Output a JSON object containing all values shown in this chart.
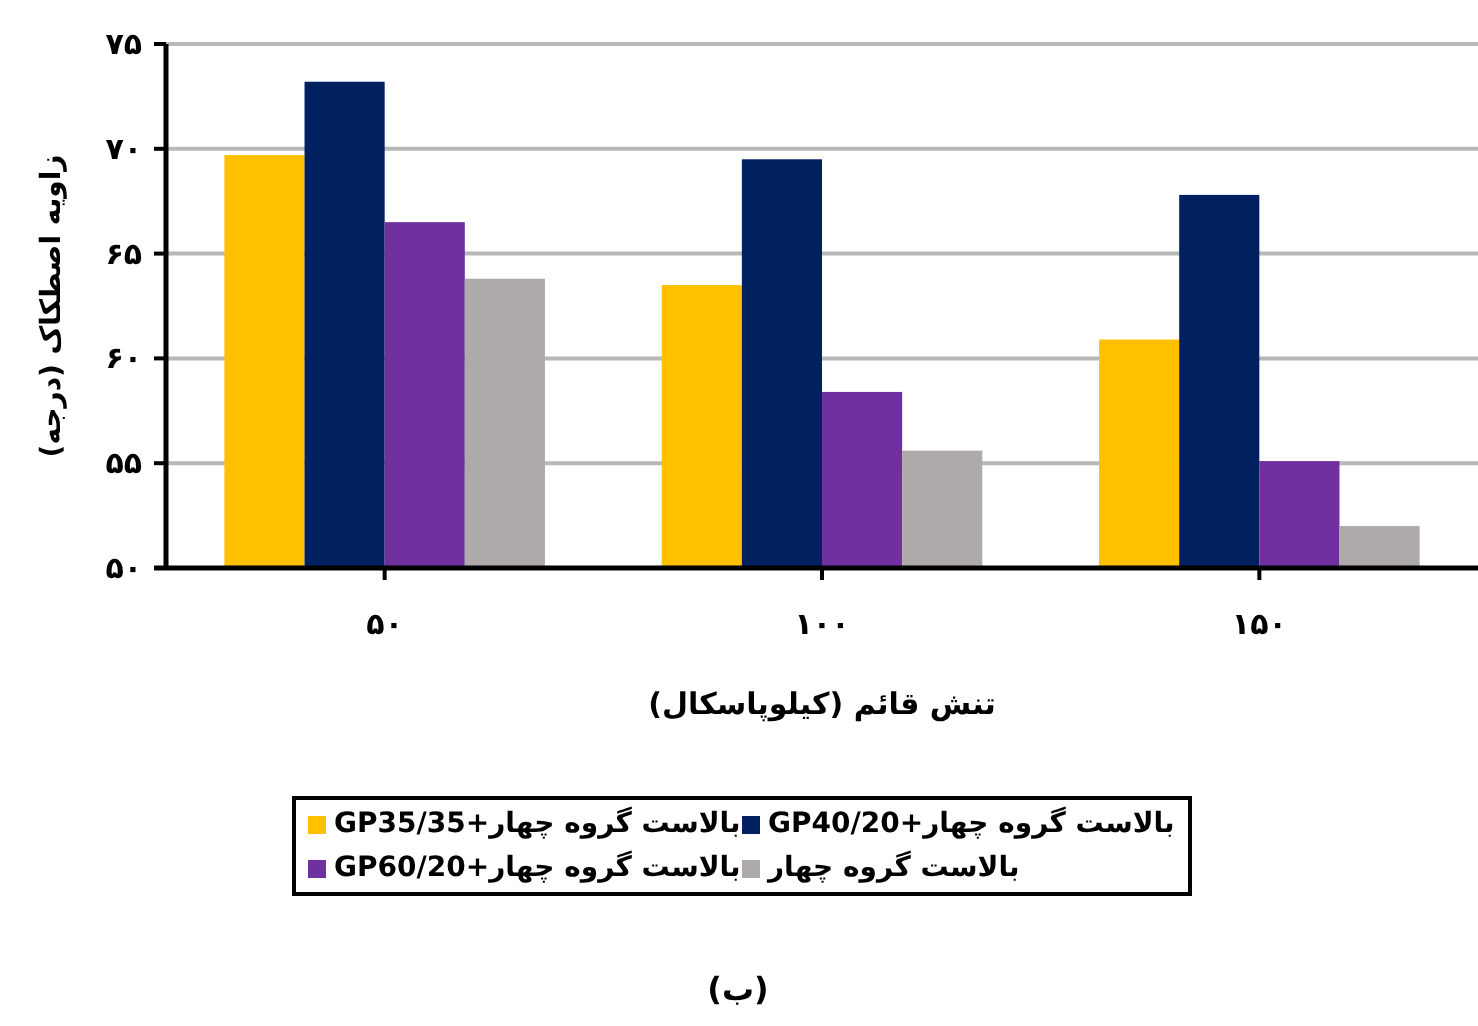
{
  "chart_data": {
    "type": "bar",
    "xlabel": "تنش قائم (کیلوپاسکال)",
    "ylabel": "زاویه اصطکاک (درجه)",
    "categories": [
      "۵۰",
      "۱۰۰",
      "۱۵۰"
    ],
    "series": [
      {
        "name": "بالاست گروه چهار+GP35/35",
        "color": "#ffc000",
        "values": [
          69.7,
          63.5,
          60.9
        ]
      },
      {
        "name": "بالاست گروه چهار+GP40/20",
        "color": "#002060",
        "values": [
          73.2,
          69.5,
          67.8
        ]
      },
      {
        "name": "بالاست گروه چهار+GP60/20",
        "color": "#7030a0",
        "values": [
          66.5,
          58.4,
          55.1
        ]
      },
      {
        "name": "بالاست گروه چهار",
        "color": "#aeaaaa",
        "values": [
          63.8,
          55.6,
          52.0
        ]
      }
    ],
    "ylim": [
      50,
      75
    ],
    "yticks": [
      {
        "value": 50,
        "label": "۵۰"
      },
      {
        "value": 55,
        "label": "۵۵"
      },
      {
        "value": 60,
        "label": "۶۰"
      },
      {
        "value": 65,
        "label": "۶۵"
      },
      {
        "value": 70,
        "label": "۷۰"
      },
      {
        "value": 75,
        "label": "۷۵"
      }
    ],
    "grid": "y",
    "legend": "bottom",
    "annotations": [
      "(ب)"
    ]
  }
}
